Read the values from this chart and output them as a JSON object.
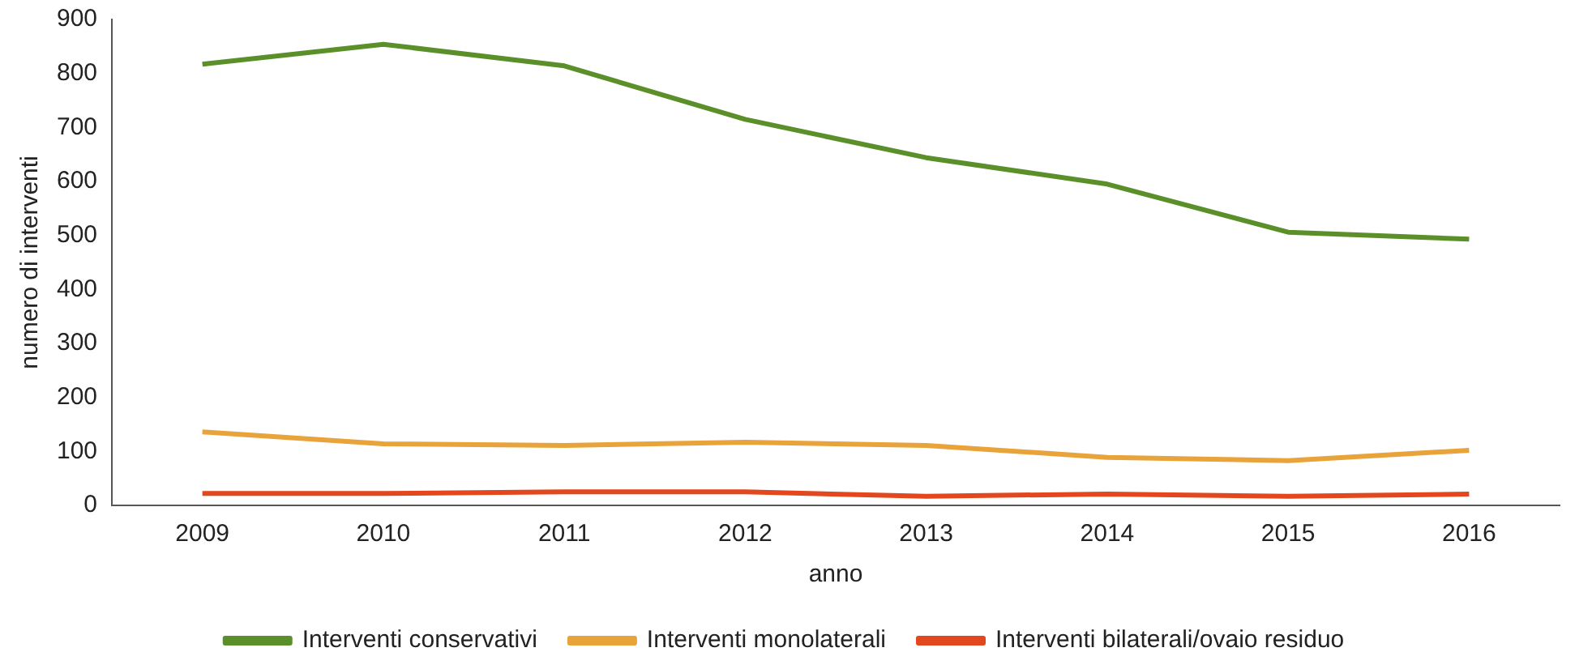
{
  "chart_data": {
    "type": "line",
    "xlabel": "anno",
    "ylabel": "numero di interventi",
    "categories": [
      "2009",
      "2010",
      "2011",
      "2012",
      "2013",
      "2014",
      "2015",
      "2016"
    ],
    "series": [
      {
        "name": "Interventi conservativi",
        "color": "#5a8f29",
        "values": [
          817,
          854,
          814,
          715,
          644,
          595,
          506,
          493
        ]
      },
      {
        "name": "Interventi monolaterali",
        "color": "#e8a33a",
        "values": [
          136,
          114,
          111,
          117,
          111,
          89,
          83,
          102
        ]
      },
      {
        "name": "Interventi bilaterali/ovaio residuo",
        "color": "#e2471e",
        "values": [
          22,
          22,
          25,
          25,
          17,
          21,
          17,
          21
        ]
      }
    ],
    "ylim": [
      0,
      900
    ],
    "yticks": [
      0,
      100,
      200,
      300,
      400,
      500,
      600,
      700,
      800,
      900
    ],
    "grid": false,
    "legend": "bottom",
    "marker": "none",
    "line_style": "solid"
  }
}
